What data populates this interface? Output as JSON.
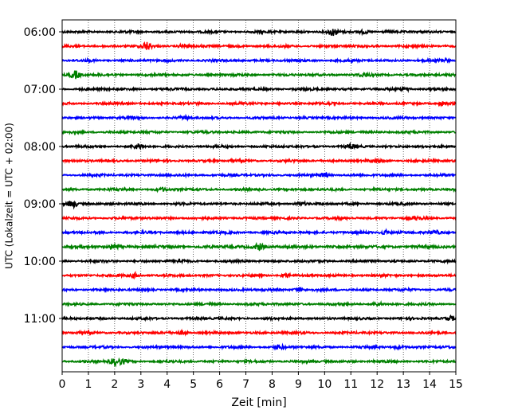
{
  "chart_data": {
    "type": "line",
    "xlabel": "Zeit  [min]",
    "ylabel": "UTC (Lokalzeit = UTC + 02:00)",
    "xlim": [
      0,
      15
    ],
    "x_ticks": [
      "0",
      "1",
      "2",
      "3",
      "4",
      "5",
      "6",
      "7",
      "8",
      "9",
      "10",
      "11",
      "12",
      "13",
      "14",
      "15"
    ],
    "y_tick_labels": [
      "06:00",
      "07:00",
      "08:00",
      "09:00",
      "10:00",
      "11:00"
    ],
    "grid": "vertical-dotted",
    "trace_colors": [
      "#000000",
      "#ff0000",
      "#0000ff",
      "#008000"
    ],
    "traces": [
      {
        "start": "06:00",
        "color": "#000000",
        "amplitude": 0.3,
        "events": [
          {
            "t": 10.3,
            "amp": 1.0
          },
          {
            "t": 11.5,
            "amp": 0.5
          }
        ]
      },
      {
        "start": "06:15",
        "color": "#ff0000",
        "amplitude": 0.3,
        "events": [
          {
            "t": 3.2,
            "amp": 1.1
          },
          {
            "t": 4.6,
            "amp": 0.5
          }
        ]
      },
      {
        "start": "06:30",
        "color": "#0000ff",
        "amplitude": 0.3,
        "events": [
          {
            "t": 14.5,
            "amp": 0.5
          }
        ]
      },
      {
        "start": "06:45",
        "color": "#008000",
        "amplitude": 0.3,
        "events": [
          {
            "t": 0.5,
            "amp": 1.1
          },
          {
            "t": 11.5,
            "amp": 0.5
          }
        ]
      },
      {
        "start": "07:00",
        "color": "#000000",
        "amplitude": 0.3,
        "events": [
          {
            "t": 13.1,
            "amp": 0.5
          }
        ]
      },
      {
        "start": "07:15",
        "color": "#ff0000",
        "amplitude": 0.3,
        "events": [
          {
            "t": 14.5,
            "amp": 0.5
          }
        ]
      },
      {
        "start": "07:30",
        "color": "#0000ff",
        "amplitude": 0.3,
        "events": [
          {
            "t": 4.7,
            "amp": 0.4
          }
        ]
      },
      {
        "start": "07:45",
        "color": "#008000",
        "amplitude": 0.3,
        "events": []
      },
      {
        "start": "08:00",
        "color": "#000000",
        "amplitude": 0.3,
        "events": [
          {
            "t": 2.9,
            "amp": 0.6
          },
          {
            "t": 11.0,
            "amp": 0.5
          }
        ]
      },
      {
        "start": "08:15",
        "color": "#ff0000",
        "amplitude": 0.3,
        "events": [
          {
            "t": 12.0,
            "amp": 0.4
          }
        ]
      },
      {
        "start": "08:30",
        "color": "#0000ff",
        "amplitude": 0.3,
        "events": [
          {
            "t": 10.0,
            "amp": 0.6
          }
        ]
      },
      {
        "start": "08:45",
        "color": "#008000",
        "amplitude": 0.3,
        "events": [
          {
            "t": 3.8,
            "amp": 0.4
          }
        ]
      },
      {
        "start": "09:00",
        "color": "#000000",
        "amplitude": 0.3,
        "events": [
          {
            "t": 0.4,
            "amp": 1.0
          },
          {
            "t": 9.1,
            "amp": 0.5
          }
        ]
      },
      {
        "start": "09:15",
        "color": "#ff0000",
        "amplitude": 0.3,
        "events": [
          {
            "t": 13.5,
            "amp": 0.4
          }
        ]
      },
      {
        "start": "09:30",
        "color": "#0000ff",
        "amplitude": 0.32,
        "events": [
          {
            "t": 12.3,
            "amp": 0.6
          },
          {
            "t": 14.2,
            "amp": 0.5
          }
        ]
      },
      {
        "start": "09:45",
        "color": "#008000",
        "amplitude": 0.36,
        "events": [
          {
            "t": 2.0,
            "amp": 0.8
          },
          {
            "t": 7.5,
            "amp": 0.9
          }
        ]
      },
      {
        "start": "10:00",
        "color": "#000000",
        "amplitude": 0.3,
        "events": [
          {
            "t": 4.5,
            "amp": 0.5
          }
        ]
      },
      {
        "start": "10:15",
        "color": "#ff0000",
        "amplitude": 0.3,
        "events": [
          {
            "t": 2.8,
            "amp": 0.7
          },
          {
            "t": 8.5,
            "amp": 0.5
          }
        ]
      },
      {
        "start": "10:30",
        "color": "#0000ff",
        "amplitude": 0.3,
        "events": [
          {
            "t": 9.0,
            "amp": 0.5
          }
        ]
      },
      {
        "start": "10:45",
        "color": "#008000",
        "amplitude": 0.3,
        "events": [
          {
            "t": 12.0,
            "amp": 0.4
          }
        ]
      },
      {
        "start": "11:00",
        "color": "#000000",
        "amplitude": 0.3,
        "events": [
          {
            "t": 14.8,
            "amp": 0.6
          }
        ]
      },
      {
        "start": "11:15",
        "color": "#ff0000",
        "amplitude": 0.3,
        "events": [
          {
            "t": 4.6,
            "amp": 0.5
          }
        ]
      },
      {
        "start": "11:30",
        "color": "#0000ff",
        "amplitude": 0.3,
        "events": [
          {
            "t": 8.3,
            "amp": 0.5
          },
          {
            "t": 12.8,
            "amp": 0.4
          }
        ]
      },
      {
        "start": "11:45",
        "color": "#008000",
        "amplitude": 0.3,
        "events": [
          {
            "t": 2.0,
            "amp": 0.8
          },
          {
            "t": 2.3,
            "amp": 0.6
          }
        ]
      }
    ]
  }
}
